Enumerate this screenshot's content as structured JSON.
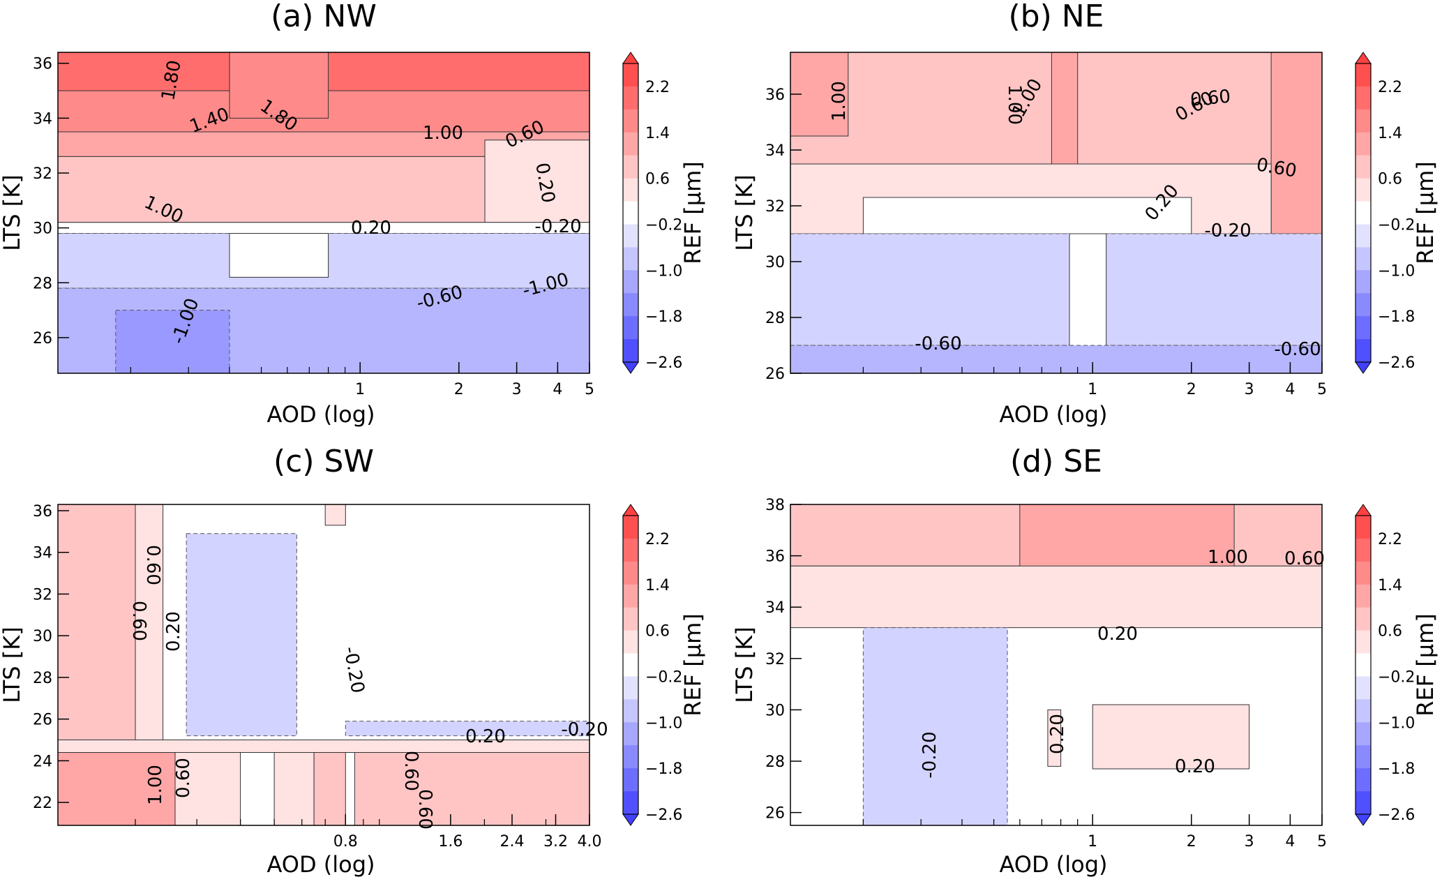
{
  "chart_data": [
    {
      "type": "heatmap",
      "title": "(a) NW",
      "xlabel": "AOD (log)",
      "ylabel": "LTS [K]",
      "xscale": "log",
      "xlim": [
        0.12,
        5
      ],
      "ylim": [
        24.7,
        36.4
      ],
      "xticks": [
        "1",
        "2",
        "3",
        "4",
        "5"
      ],
      "yticks": [
        "26",
        "28",
        "30",
        "32",
        "34",
        "36"
      ],
      "colorbar": {
        "label": "REF [µm]",
        "ticks": [
          "2.2",
          "1.4",
          "0.6",
          "−0.2",
          "−1.0",
          "−1.8",
          "−2.6"
        ]
      },
      "contour_labels": [
        "1.80",
        "1.80",
        "1.40",
        "1.00",
        "0.60",
        "0.20",
        "1.00",
        "0.20",
        "-0.20",
        "-0.60",
        "-1.00",
        "-1.00"
      ],
      "regions": [
        {
          "level": 2.0,
          "points": [
            [
              0.12,
              36.4
            ],
            [
              5,
              36.4
            ],
            [
              5,
              35.0
            ],
            [
              0.12,
              35.0
            ]
          ]
        },
        {
          "level": 1.6,
          "points": [
            [
              0.12,
              35.0
            ],
            [
              5,
              35.0
            ],
            [
              5,
              33.5
            ],
            [
              0.12,
              33.5
            ]
          ]
        },
        {
          "level": 1.2,
          "points": [
            [
              0.12,
              33.5
            ],
            [
              5,
              33.5
            ],
            [
              5,
              32.6
            ],
            [
              0.12,
              32.6
            ]
          ]
        },
        {
          "level": 0.8,
          "points": [
            [
              0.12,
              32.6
            ],
            [
              3.0,
              32.6
            ],
            [
              3.0,
              30.2
            ],
            [
              0.12,
              30.2
            ]
          ]
        },
        {
          "level": 0.4,
          "points": [
            [
              2.4,
              33.2
            ],
            [
              5,
              33.2
            ],
            [
              5,
              30.2
            ],
            [
              2.4,
              30.2
            ]
          ]
        },
        {
          "level": 0.0,
          "points": [
            [
              0.12,
              30.2
            ],
            [
              5,
              30.2
            ],
            [
              5,
              29.8
            ],
            [
              0.12,
              29.8
            ]
          ]
        },
        {
          "level": -0.6,
          "points": [
            [
              0.12,
              29.8
            ],
            [
              5,
              29.8
            ],
            [
              5,
              27.8
            ],
            [
              0.12,
              27.8
            ]
          ]
        },
        {
          "level": -1.0,
          "points": [
            [
              0.12,
              27.8
            ],
            [
              5,
              27.8
            ],
            [
              5,
              24.7
            ],
            [
              0.12,
              24.7
            ]
          ]
        },
        {
          "level": 0.0,
          "points": [
            [
              0.4,
              29.8
            ],
            [
              0.8,
              29.8
            ],
            [
              0.8,
              28.2
            ],
            [
              0.4,
              28.2
            ]
          ]
        },
        {
          "level": -1.4,
          "points": [
            [
              0.18,
              27.0
            ],
            [
              0.4,
              27.0
            ],
            [
              0.4,
              24.7
            ],
            [
              0.18,
              24.7
            ]
          ]
        },
        {
          "level": 1.6,
          "points": [
            [
              0.4,
              36.4
            ],
            [
              0.8,
              36.4
            ],
            [
              0.8,
              34.0
            ],
            [
              0.4,
              34.0
            ]
          ]
        }
      ]
    },
    {
      "type": "heatmap",
      "title": "(b) NE",
      "xlabel": "AOD (log)",
      "ylabel": "LTS [K]",
      "xscale": "log",
      "xlim": [
        0.12,
        5
      ],
      "ylim": [
        26,
        37.5
      ],
      "xticks": [
        "1",
        "2",
        "3",
        "4",
        "5"
      ],
      "yticks": [
        "26",
        "28",
        "30",
        "32",
        "34",
        "36"
      ],
      "colorbar": {
        "label": "REF [µm]",
        "ticks": [
          "2.2",
          "1.4",
          "0.6",
          "−0.2",
          "−1.0",
          "−1.8",
          "−2.6"
        ]
      },
      "contour_labels": [
        "1.00",
        "1.00",
        "1.00",
        "0.60",
        "0.60",
        "0.60",
        "0.20",
        "-0.20",
        "-0.60",
        "-0.60"
      ],
      "regions": [
        {
          "level": 0.8,
          "points": [
            [
              0.12,
              37.5
            ],
            [
              5,
              37.5
            ],
            [
              5,
              33.5
            ],
            [
              0.12,
              33.5
            ]
          ]
        },
        {
          "level": 1.2,
          "points": [
            [
              0.12,
              37.5
            ],
            [
              0.18,
              37.5
            ],
            [
              0.18,
              34.5
            ],
            [
              0.12,
              34.5
            ]
          ]
        },
        {
          "level": 1.2,
          "points": [
            [
              0.75,
              37.5
            ],
            [
              0.9,
              37.5
            ],
            [
              0.9,
              33.5
            ],
            [
              0.75,
              33.5
            ]
          ]
        },
        {
          "level": 1.2,
          "points": [
            [
              3.5,
              37.5
            ],
            [
              5,
              37.5
            ],
            [
              5,
              31.0
            ],
            [
              3.5,
              31.0
            ]
          ]
        },
        {
          "level": 0.4,
          "points": [
            [
              0.12,
              33.5
            ],
            [
              3.5,
              33.5
            ],
            [
              3.5,
              31.0
            ],
            [
              0.12,
              31.0
            ]
          ]
        },
        {
          "level": 0.0,
          "points": [
            [
              0.2,
              32.3
            ],
            [
              2.0,
              32.3
            ],
            [
              2.0,
              31.0
            ],
            [
              0.2,
              31.0
            ]
          ]
        },
        {
          "level": -0.6,
          "points": [
            [
              0.12,
              31.0
            ],
            [
              5,
              31.0
            ],
            [
              5,
              27.0
            ],
            [
              0.12,
              27.0
            ]
          ]
        },
        {
          "level": 0.0,
          "points": [
            [
              0.85,
              31.0
            ],
            [
              1.1,
              31.0
            ],
            [
              1.1,
              26.0
            ],
            [
              0.85,
              26.0
            ]
          ]
        },
        {
          "level": -1.0,
          "points": [
            [
              0.12,
              27.0
            ],
            [
              5,
              27.0
            ],
            [
              5,
              26.0
            ],
            [
              0.12,
              26.0
            ]
          ]
        }
      ]
    },
    {
      "type": "heatmap",
      "title": "(c) SW",
      "xlabel": "AOD (log)",
      "ylabel": "LTS [K]",
      "xscale": "log",
      "xlim": [
        0.12,
        4.0
      ],
      "ylim": [
        20.9,
        36.3
      ],
      "xticks": [
        "0.8",
        "1.6",
        "2.4",
        "3.2",
        "4.0"
      ],
      "yticks": [
        "22",
        "24",
        "26",
        "28",
        "30",
        "32",
        "34",
        "36"
      ],
      "colorbar": {
        "label": "REF [µm]",
        "ticks": [
          "2.2",
          "1.4",
          "0.6",
          "−0.2",
          "−1.0",
          "−1.8",
          "−2.6"
        ]
      },
      "contour_labels": [
        "0.60",
        "0.60",
        "0.20",
        "-0.20",
        "0.20",
        "-0.20",
        "0.60",
        "0.60",
        "1.00",
        "0.60"
      ],
      "regions": [
        {
          "level": 0.0,
          "points": [
            [
              0.12,
              36.3
            ],
            [
              4.0,
              36.3
            ],
            [
              4.0,
              20.9
            ],
            [
              0.12,
              20.9
            ]
          ]
        },
        {
          "level": 0.8,
          "points": [
            [
              0.12,
              36.3
            ],
            [
              0.2,
              36.3
            ],
            [
              0.2,
              25.0
            ],
            [
              0.12,
              25.0
            ]
          ]
        },
        {
          "level": 0.4,
          "points": [
            [
              0.2,
              36.3
            ],
            [
              0.24,
              36.3
            ],
            [
              0.24,
              25.0
            ],
            [
              0.2,
              25.0
            ]
          ]
        },
        {
          "level": 0.4,
          "points": [
            [
              0.12,
              25.0
            ],
            [
              4.0,
              25.0
            ],
            [
              4.0,
              24.4
            ],
            [
              0.12,
              24.4
            ]
          ]
        },
        {
          "level": 1.2,
          "points": [
            [
              0.12,
              24.4
            ],
            [
              0.26,
              24.4
            ],
            [
              0.26,
              20.9
            ],
            [
              0.12,
              20.9
            ]
          ]
        },
        {
          "level": 0.4,
          "points": [
            [
              0.26,
              24.4
            ],
            [
              0.4,
              24.4
            ],
            [
              0.4,
              20.9
            ],
            [
              0.26,
              20.9
            ]
          ]
        },
        {
          "level": 0.4,
          "points": [
            [
              0.5,
              24.4
            ],
            [
              0.65,
              24.4
            ],
            [
              0.65,
              20.9
            ],
            [
              0.5,
              20.9
            ]
          ]
        },
        {
          "level": 0.8,
          "points": [
            [
              0.65,
              24.4
            ],
            [
              0.8,
              24.4
            ],
            [
              0.8,
              20.9
            ],
            [
              0.65,
              20.9
            ]
          ]
        },
        {
          "level": 0.8,
          "points": [
            [
              0.85,
              24.4
            ],
            [
              4.0,
              24.4
            ],
            [
              4.0,
              20.9
            ],
            [
              0.85,
              20.9
            ]
          ]
        },
        {
          "level": -0.6,
          "points": [
            [
              0.28,
              34.9
            ],
            [
              0.58,
              34.9
            ],
            [
              0.58,
              25.2
            ],
            [
              0.28,
              25.2
            ]
          ]
        },
        {
          "level": -0.6,
          "points": [
            [
              0.8,
              25.9
            ],
            [
              4.0,
              25.9
            ],
            [
              4.0,
              25.2
            ],
            [
              0.8,
              25.2
            ]
          ]
        },
        {
          "level": 0.4,
          "points": [
            [
              0.7,
              36.3
            ],
            [
              0.8,
              36.3
            ],
            [
              0.8,
              35.3
            ],
            [
              0.7,
              35.3
            ]
          ]
        }
      ]
    },
    {
      "type": "heatmap",
      "title": "(d) SE",
      "xlabel": "AOD (log)",
      "ylabel": "LTS [K]",
      "xscale": "log",
      "xlim": [
        0.12,
        5
      ],
      "ylim": [
        25.5,
        38
      ],
      "xticks": [
        "1",
        "2",
        "3",
        "4",
        "5"
      ],
      "yticks": [
        "26",
        "28",
        "30",
        "32",
        "34",
        "36",
        "38"
      ],
      "colorbar": {
        "label": "REF [µm]",
        "ticks": [
          "2.2",
          "1.4",
          "0.6",
          "−0.2",
          "−1.0",
          "−1.8",
          "−2.6"
        ]
      },
      "contour_labels": [
        "1.00",
        "0.60",
        "0.20",
        "-0.20",
        "0.20",
        "0.20"
      ],
      "regions": [
        {
          "level": 0.0,
          "points": [
            [
              0.12,
              38
            ],
            [
              5,
              38
            ],
            [
              5,
              25.5
            ],
            [
              0.12,
              25.5
            ]
          ]
        },
        {
          "level": 0.8,
          "points": [
            [
              0.12,
              38
            ],
            [
              5,
              38
            ],
            [
              5,
              35.6
            ],
            [
              0.12,
              35.6
            ]
          ]
        },
        {
          "level": 1.2,
          "points": [
            [
              0.6,
              38
            ],
            [
              2.7,
              38
            ],
            [
              2.7,
              35.4
            ],
            [
              0.6,
              35.4
            ]
          ]
        },
        {
          "level": 0.4,
          "points": [
            [
              0.12,
              35.6
            ],
            [
              5,
              35.6
            ],
            [
              5,
              33.2
            ],
            [
              0.12,
              33.2
            ]
          ]
        },
        {
          "level": -0.6,
          "points": [
            [
              0.2,
              33.2
            ],
            [
              0.55,
              33.2
            ],
            [
              0.55,
              25.5
            ],
            [
              0.2,
              25.5
            ]
          ]
        },
        {
          "level": 0.4,
          "points": [
            [
              1.0,
              30.2
            ],
            [
              3.0,
              30.2
            ],
            [
              3.0,
              27.7
            ],
            [
              1.0,
              27.7
            ]
          ]
        },
        {
          "level": 0.4,
          "points": [
            [
              0.73,
              30.0
            ],
            [
              0.8,
              30.0
            ],
            [
              0.8,
              27.8
            ],
            [
              0.73,
              27.8
            ]
          ]
        }
      ]
    }
  ]
}
